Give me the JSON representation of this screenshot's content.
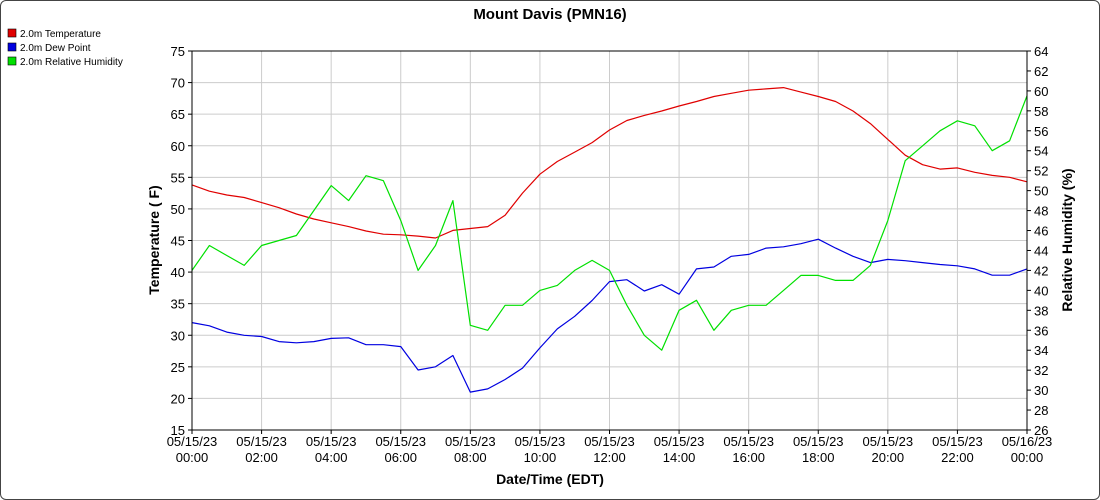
{
  "chart_data": {
    "type": "line",
    "title": "Mount Davis (PMN16)",
    "xlabel": "Date/Time (EDT)",
    "ylabel": "Temperature ( F)",
    "y2label": "Relative Humidity (%)",
    "ylim": [
      15,
      75
    ],
    "y2lim": [
      26,
      64
    ],
    "xlim": [
      "05/15/23 00:00",
      "05/16/23 00:00"
    ],
    "grid": true,
    "legend_position": "top-left",
    "x_tick_labels": [
      {
        "date": "05/15/23",
        "time": "00:00"
      },
      {
        "date": "05/15/23",
        "time": "02:00"
      },
      {
        "date": "05/15/23",
        "time": "04:00"
      },
      {
        "date": "05/15/23",
        "time": "06:00"
      },
      {
        "date": "05/15/23",
        "time": "08:00"
      },
      {
        "date": "05/15/23",
        "time": "10:00"
      },
      {
        "date": "05/15/23",
        "time": "12:00"
      },
      {
        "date": "05/15/23",
        "time": "14:00"
      },
      {
        "date": "05/15/23",
        "time": "16:00"
      },
      {
        "date": "05/15/23",
        "time": "18:00"
      },
      {
        "date": "05/15/23",
        "time": "20:00"
      },
      {
        "date": "05/15/23",
        "time": "22:00"
      },
      {
        "date": "05/16/23",
        "time": "00:00"
      }
    ],
    "y_ticks": [
      15,
      20,
      25,
      30,
      35,
      40,
      45,
      50,
      55,
      60,
      65,
      70,
      75
    ],
    "y2_ticks": [
      26,
      28,
      30,
      32,
      34,
      36,
      38,
      40,
      42,
      44,
      46,
      48,
      50,
      52,
      54,
      56,
      58,
      60,
      62,
      64
    ],
    "series": [
      {
        "name": "2.0m Temperature",
        "color": "#e00000",
        "axis": "left",
        "x": [
          "05/15/23 00:00",
          "05/15/23 00:30",
          "05/15/23 01:00",
          "05/15/23 01:30",
          "05/15/23 02:00",
          "05/15/23 02:30",
          "05/15/23 03:00",
          "05/15/23 03:30",
          "05/15/23 04:00",
          "05/15/23 04:30",
          "05/15/23 05:00",
          "05/15/23 05:30",
          "05/15/23 06:00",
          "05/15/23 06:30",
          "05/15/23 07:00",
          "05/15/23 07:30",
          "05/15/23 08:00",
          "05/15/23 08:30",
          "05/15/23 09:00",
          "05/15/23 09:30",
          "05/15/23 10:00",
          "05/15/23 10:30",
          "05/15/23 11:00",
          "05/15/23 11:30",
          "05/15/23 12:00",
          "05/15/23 12:30",
          "05/15/23 13:00",
          "05/15/23 13:30",
          "05/15/23 14:00",
          "05/15/23 14:30",
          "05/15/23 15:00",
          "05/15/23 15:30",
          "05/15/23 16:00",
          "05/15/23 16:30",
          "05/15/23 17:00",
          "05/15/23 17:30",
          "05/15/23 18:00",
          "05/15/23 18:30",
          "05/15/23 19:00",
          "05/15/23 19:30",
          "05/15/23 20:00",
          "05/15/23 20:30",
          "05/15/23 21:00",
          "05/15/23 21:30",
          "05/15/23 22:00",
          "05/15/23 22:30",
          "05/15/23 23:00",
          "05/15/23 23:30",
          "05/16/23 00:00"
        ],
        "values": [
          53.8,
          52.8,
          52.2,
          51.8,
          51.0,
          50.2,
          49.2,
          48.4,
          47.8,
          47.2,
          46.5,
          46.0,
          45.9,
          45.7,
          45.4,
          46.6,
          46.9,
          47.2,
          49.0,
          52.5,
          55.5,
          57.5,
          59.0,
          60.5,
          62.5,
          64.0,
          64.8,
          65.5,
          66.3,
          67.0,
          67.8,
          68.3,
          68.8,
          69.0,
          69.2,
          68.5,
          67.8,
          67.0,
          65.5,
          63.5,
          61.0,
          58.5,
          57.0,
          56.3,
          56.5,
          55.8,
          55.3,
          55.0,
          54.3
        ]
      },
      {
        "name": "2.0m Dew Point",
        "color": "#0000e0",
        "axis": "left",
        "x": [
          "05/15/23 00:00",
          "05/15/23 00:30",
          "05/15/23 01:00",
          "05/15/23 01:30",
          "05/15/23 02:00",
          "05/15/23 02:30",
          "05/15/23 03:00",
          "05/15/23 03:30",
          "05/15/23 04:00",
          "05/15/23 04:30",
          "05/15/23 05:00",
          "05/15/23 05:30",
          "05/15/23 06:00",
          "05/15/23 06:30",
          "05/15/23 07:00",
          "05/15/23 07:30",
          "05/15/23 08:00",
          "05/15/23 08:30",
          "05/15/23 09:00",
          "05/15/23 09:30",
          "05/15/23 10:00",
          "05/15/23 10:30",
          "05/15/23 11:00",
          "05/15/23 11:30",
          "05/15/23 12:00",
          "05/15/23 12:30",
          "05/15/23 13:00",
          "05/15/23 13:30",
          "05/15/23 14:00",
          "05/15/23 14:30",
          "05/15/23 15:00",
          "05/15/23 15:30",
          "05/15/23 16:00",
          "05/15/23 16:30",
          "05/15/23 17:00",
          "05/15/23 17:30",
          "05/15/23 18:00",
          "05/15/23 18:30",
          "05/15/23 19:00",
          "05/15/23 19:30",
          "05/15/23 20:00",
          "05/15/23 20:30",
          "05/15/23 21:00",
          "05/15/23 21:30",
          "05/15/23 22:00",
          "05/15/23 22:30",
          "05/15/23 23:00",
          "05/15/23 23:30",
          "05/16/23 00:00"
        ],
        "values": [
          32.0,
          31.5,
          30.5,
          30.0,
          29.8,
          29.0,
          28.8,
          29.0,
          29.5,
          29.6,
          28.5,
          28.5,
          28.2,
          24.5,
          25.0,
          26.8,
          21.0,
          21.5,
          23.0,
          24.8,
          28.0,
          31.0,
          33.0,
          35.5,
          38.5,
          38.8,
          37.0,
          38.0,
          36.5,
          40.5,
          40.8,
          42.5,
          42.8,
          43.8,
          44.0,
          44.5,
          45.2,
          43.8,
          42.5,
          41.5,
          42.0,
          41.8,
          41.5,
          41.2,
          41.0,
          40.5,
          39.5,
          39.5,
          40.5
        ]
      },
      {
        "name": "2.0m Relative Humidity",
        "color": "#00e000",
        "axis": "right",
        "x": [
          "05/15/23 00:00",
          "05/15/23 00:30",
          "05/15/23 01:00",
          "05/15/23 01:30",
          "05/15/23 02:00",
          "05/15/23 02:30",
          "05/15/23 03:00",
          "05/15/23 03:30",
          "05/15/23 04:00",
          "05/15/23 04:30",
          "05/15/23 05:00",
          "05/15/23 05:30",
          "05/15/23 06:00",
          "05/15/23 06:30",
          "05/15/23 07:00",
          "05/15/23 07:30",
          "05/15/23 08:00",
          "05/15/23 08:30",
          "05/15/23 09:00",
          "05/15/23 09:30",
          "05/15/23 10:00",
          "05/15/23 10:30",
          "05/15/23 11:00",
          "05/15/23 11:30",
          "05/15/23 12:00",
          "05/15/23 12:30",
          "05/15/23 13:00",
          "05/15/23 13:30",
          "05/15/23 14:00",
          "05/15/23 14:30",
          "05/15/23 15:00",
          "05/15/23 15:30",
          "05/15/23 16:00",
          "05/15/23 16:30",
          "05/15/23 17:00",
          "05/15/23 17:30",
          "05/15/23 18:00",
          "05/15/23 18:30",
          "05/15/23 19:00",
          "05/15/23 19:30",
          "05/15/23 20:00",
          "05/15/23 20:30",
          "05/15/23 21:00",
          "05/15/23 21:30",
          "05/15/23 22:00",
          "05/15/23 22:30",
          "05/15/23 23:00",
          "05/15/23 23:30",
          "05/16/23 00:00"
        ],
        "values": [
          42.0,
          44.5,
          43.5,
          42.5,
          44.5,
          45.0,
          45.5,
          48.0,
          50.5,
          49.0,
          51.5,
          51.0,
          47.0,
          42.0,
          44.5,
          49.0,
          36.5,
          36.0,
          38.5,
          38.5,
          40.0,
          40.5,
          42.0,
          43.0,
          42.0,
          38.5,
          35.5,
          34.0,
          38.0,
          39.0,
          36.0,
          38.0,
          38.5,
          38.5,
          40.0,
          41.5,
          41.5,
          41.0,
          41.0,
          42.5,
          47.0,
          53.0,
          54.5,
          56.0,
          57.0,
          56.5,
          54.0,
          55.0,
          59.5
        ]
      }
    ]
  }
}
